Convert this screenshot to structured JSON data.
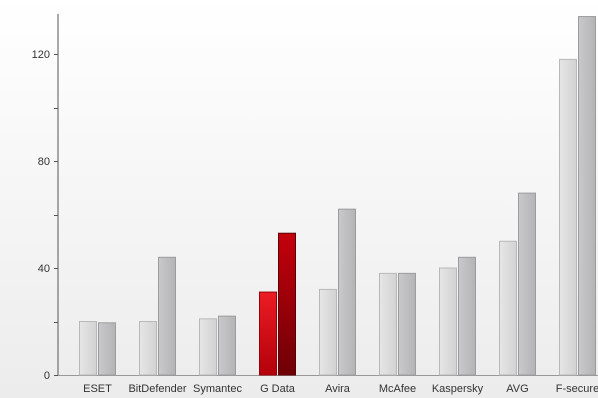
{
  "chart_data": {
    "type": "bar",
    "title": "",
    "xlabel": "",
    "ylabel": "",
    "ylim": [
      0,
      135
    ],
    "yticks": [
      0,
      40,
      80,
      120
    ],
    "grid": false,
    "categories": [
      "ESET",
      "BitDefender",
      "Symantec",
      "G Data",
      "Avira",
      "McAfee",
      "Kaspersky",
      "AVG",
      "F-secure"
    ],
    "highlight_category": "G Data",
    "series": [
      {
        "values": [
          20,
          20,
          21,
          31,
          32,
          38,
          40,
          50,
          118
        ]
      },
      {
        "values": [
          19.5,
          44,
          22,
          53,
          62,
          38,
          44,
          68,
          134
        ]
      }
    ],
    "colors": {
      "series_1": "#d9d9d9",
      "series_2": "#bfbfc1",
      "highlight_series_1": "#e0121a",
      "highlight_series_2": "#b0000c",
      "axis": "#555555",
      "background_top": "#ffffff",
      "background_bottom": "#ececec"
    }
  }
}
